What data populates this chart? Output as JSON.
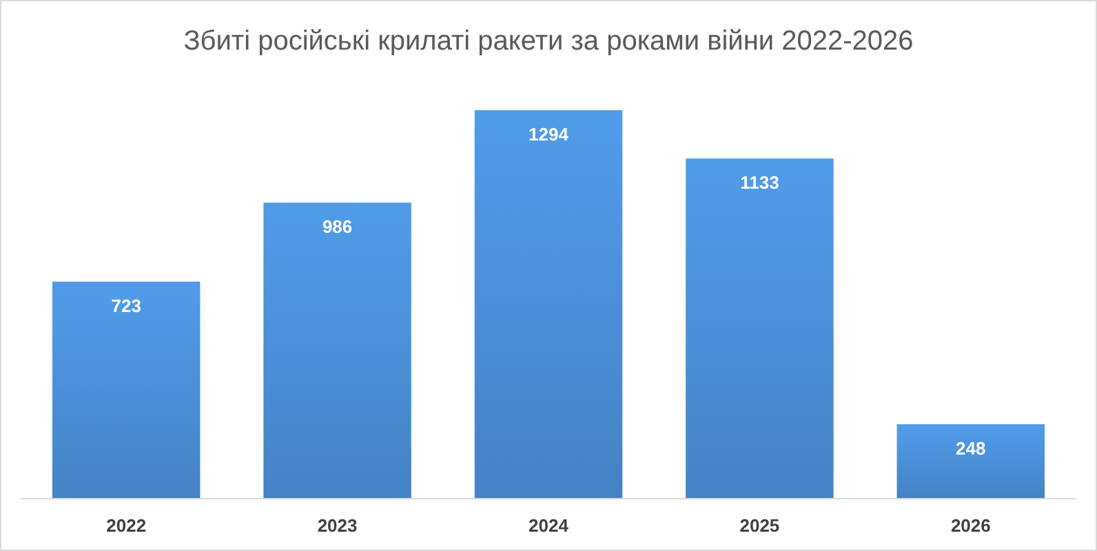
{
  "chart_data": {
    "type": "bar",
    "title": "Збиті російські крилаті ракети за роками війни 2022-2026",
    "categories": [
      "2022",
      "2023",
      "2024",
      "2025",
      "2026"
    ],
    "values": [
      723,
      986,
      1294,
      1133,
      248
    ],
    "color": "#4a8fd6",
    "data_labels": true
  }
}
